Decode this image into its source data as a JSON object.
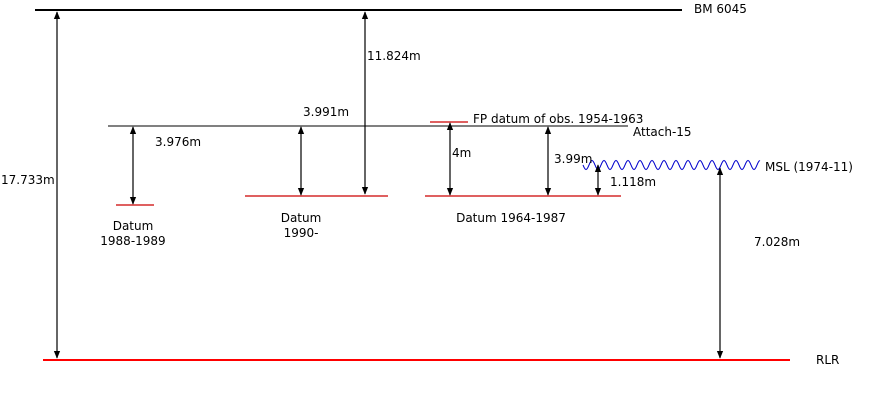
{
  "colors": {
    "line": "#000000",
    "datum_line": "#cc0000",
    "rlr_line": "#ff0000",
    "msl_wave": "#0000cc"
  },
  "levels": {
    "bm": "BM 6045",
    "rlr": "RLR",
    "attach": "Attach-15",
    "fp_datum": "FP datum of obs. 1954-1963",
    "msl": "MSL (1974-11)",
    "datum_1988_line1": "Datum",
    "datum_1988_line2": "1988-1989",
    "datum_1990_line1": "Datum",
    "datum_1990_line2": "1990-",
    "datum_1964": "Datum 1964-1987"
  },
  "measurements": {
    "bm_to_rlr": "17.733m",
    "bm_to_datum_1990": "11.824m",
    "attach_to_datum_1988": "3.976m",
    "attach_to_datum_1990": "3.991m",
    "fp_to_datum_1964": "4m",
    "attach_to_datum_1964": "3.99m",
    "msl_to_datum_1964": "1.118m",
    "msl_to_rlr": "7.028m"
  }
}
